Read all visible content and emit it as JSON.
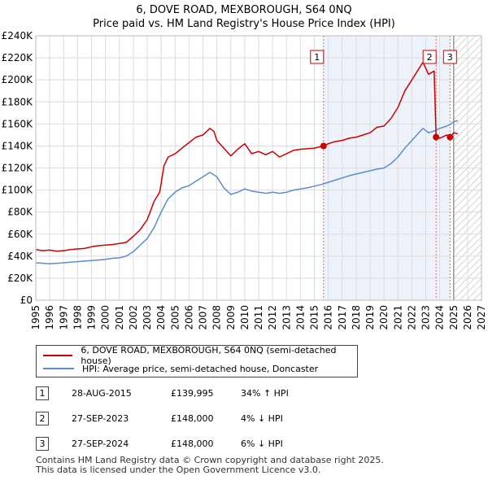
{
  "chart_data": {
    "type": "line",
    "title": "6, DOVE ROAD, MEXBOROUGH, S64 0NQ",
    "subtitle": "Price paid vs. HM Land Registry's House Price Index (HPI)",
    "xlim": [
      1995,
      2027
    ],
    "ylim": [
      0,
      240000
    ],
    "x_ticks": [
      "1995",
      "1996",
      "1997",
      "1998",
      "1999",
      "2000",
      "2001",
      "2002",
      "2003",
      "2004",
      "2005",
      "2006",
      "2007",
      "2008",
      "2009",
      "2010",
      "2011",
      "2012",
      "2013",
      "2014",
      "2015",
      "2016",
      "2017",
      "2018",
      "2019",
      "2020",
      "2021",
      "2022",
      "2023",
      "2024",
      "2025",
      "2026",
      "2027"
    ],
    "y_ticks": [
      {
        "value": 0,
        "label": "£0"
      },
      {
        "value": 20000,
        "label": "£20K"
      },
      {
        "value": 40000,
        "label": "£40K"
      },
      {
        "value": 60000,
        "label": "£60K"
      },
      {
        "value": 80000,
        "label": "£80K"
      },
      {
        "value": 100000,
        "label": "£100K"
      },
      {
        "value": 120000,
        "label": "£120K"
      },
      {
        "value": 140000,
        "label": "£140K"
      },
      {
        "value": 160000,
        "label": "£160K"
      },
      {
        "value": 180000,
        "label": "£180K"
      },
      {
        "value": 200000,
        "label": "£200K"
      },
      {
        "value": 220000,
        "label": "£220K"
      },
      {
        "value": 240000,
        "label": "£240K"
      }
    ],
    "shaded_ranges": [
      {
        "from": 2015.66,
        "to": 2024.74
      }
    ],
    "hatched_from": 2025.0,
    "series": [
      {
        "name": "6, DOVE ROAD, MEXBOROUGH, S64 0NQ (semi-detached house)",
        "color": "#cc0000",
        "points": [
          [
            1995,
            46000
          ],
          [
            1995.5,
            45000
          ],
          [
            1996,
            45500
          ],
          [
            1996.5,
            44500
          ],
          [
            1997,
            45000
          ],
          [
            1997.5,
            46000
          ],
          [
            1998,
            46500
          ],
          [
            1998.5,
            47000
          ],
          [
            1999,
            48500
          ],
          [
            1999.5,
            49500
          ],
          [
            2000,
            50000
          ],
          [
            2000.5,
            50500
          ],
          [
            2001,
            51500
          ],
          [
            2001.5,
            52500
          ],
          [
            2002,
            58000
          ],
          [
            2002.5,
            64000
          ],
          [
            2003,
            73000
          ],
          [
            2003.5,
            90000
          ],
          [
            2003.9,
            98000
          ],
          [
            2004.2,
            122000
          ],
          [
            2004.5,
            130000
          ],
          [
            2005,
            133000
          ],
          [
            2005.5,
            138000
          ],
          [
            2006,
            143000
          ],
          [
            2006.5,
            148000
          ],
          [
            2007,
            150000
          ],
          [
            2007.5,
            156000
          ],
          [
            2007.8,
            153000
          ],
          [
            2008,
            145000
          ],
          [
            2008.5,
            138000
          ],
          [
            2009,
            131000
          ],
          [
            2009.5,
            137000
          ],
          [
            2010,
            142000
          ],
          [
            2010.5,
            133000
          ],
          [
            2011,
            135000
          ],
          [
            2011.5,
            132000
          ],
          [
            2012,
            135000
          ],
          [
            2012.5,
            130000
          ],
          [
            2013,
            133000
          ],
          [
            2013.5,
            136000
          ],
          [
            2014,
            137000
          ],
          [
            2014.5,
            137500
          ],
          [
            2015,
            138000
          ],
          [
            2015.66,
            139995
          ],
          [
            2016,
            142000
          ],
          [
            2016.5,
            144000
          ],
          [
            2017,
            145000
          ],
          [
            2017.5,
            147000
          ],
          [
            2018,
            148000
          ],
          [
            2018.5,
            150000
          ],
          [
            2019,
            152000
          ],
          [
            2019.5,
            157000
          ],
          [
            2020,
            158000
          ],
          [
            2020.5,
            165000
          ],
          [
            2021,
            175000
          ],
          [
            2021.5,
            190000
          ],
          [
            2022,
            200000
          ],
          [
            2022.5,
            210000
          ],
          [
            2022.8,
            216000
          ],
          [
            2023.2,
            205000
          ],
          [
            2023.6,
            208000
          ],
          [
            2023.74,
            148000
          ],
          [
            2024,
            147000
          ],
          [
            2024.5,
            150000
          ],
          [
            2024.74,
            148000
          ],
          [
            2025,
            152000
          ],
          [
            2025.3,
            151000
          ]
        ]
      },
      {
        "name": "HPI: Average price, semi-detached house, Doncaster",
        "color": "#5b8ccc",
        "points": [
          [
            1995,
            34000
          ],
          [
            1995.5,
            33500
          ],
          [
            1996,
            33000
          ],
          [
            1996.5,
            33500
          ],
          [
            1997,
            34000
          ],
          [
            1997.5,
            34500
          ],
          [
            1998,
            35000
          ],
          [
            1998.5,
            35500
          ],
          [
            1999,
            36000
          ],
          [
            1999.5,
            36500
          ],
          [
            2000,
            37000
          ],
          [
            2000.5,
            38000
          ],
          [
            2001,
            38500
          ],
          [
            2001.5,
            40000
          ],
          [
            2002,
            44000
          ],
          [
            2002.5,
            50000
          ],
          [
            2003,
            56000
          ],
          [
            2003.5,
            66000
          ],
          [
            2004,
            80000
          ],
          [
            2004.5,
            92000
          ],
          [
            2005,
            98000
          ],
          [
            2005.5,
            102000
          ],
          [
            2006,
            104000
          ],
          [
            2006.5,
            108000
          ],
          [
            2007,
            112000
          ],
          [
            2007.5,
            116000
          ],
          [
            2008,
            112000
          ],
          [
            2008.5,
            102000
          ],
          [
            2009,
            96000
          ],
          [
            2009.5,
            98000
          ],
          [
            2010,
            101000
          ],
          [
            2010.5,
            99000
          ],
          [
            2011,
            98000
          ],
          [
            2011.5,
            97000
          ],
          [
            2012,
            98000
          ],
          [
            2012.5,
            97000
          ],
          [
            2013,
            98000
          ],
          [
            2013.5,
            100000
          ],
          [
            2014,
            101000
          ],
          [
            2014.5,
            102000
          ],
          [
            2015,
            103500
          ],
          [
            2015.5,
            105000
          ],
          [
            2016,
            107000
          ],
          [
            2016.5,
            109000
          ],
          [
            2017,
            111000
          ],
          [
            2017.5,
            113000
          ],
          [
            2018,
            114500
          ],
          [
            2018.5,
            116000
          ],
          [
            2019,
            117500
          ],
          [
            2019.5,
            119000
          ],
          [
            2020,
            120000
          ],
          [
            2020.5,
            124000
          ],
          [
            2021,
            130000
          ],
          [
            2021.5,
            138000
          ],
          [
            2022,
            145000
          ],
          [
            2022.5,
            152000
          ],
          [
            2022.8,
            156000
          ],
          [
            2023.2,
            152000
          ],
          [
            2023.7,
            154000
          ],
          [
            2024,
            156000
          ],
          [
            2024.5,
            158000
          ],
          [
            2024.8,
            160000
          ],
          [
            2025,
            162000
          ],
          [
            2025.3,
            163000
          ]
        ]
      }
    ],
    "markers": [
      {
        "id": "1",
        "x": 2015.66,
        "y": 139995
      },
      {
        "id": "2",
        "x": 2023.74,
        "y": 148000
      },
      {
        "id": "3",
        "x": 2024.74,
        "y": 148000
      }
    ],
    "legend_position": "below"
  },
  "transactions": [
    {
      "num": "1",
      "date": "28-AUG-2015",
      "price": "£139,995",
      "hpi": "34% ↑ HPI"
    },
    {
      "num": "2",
      "date": "27-SEP-2023",
      "price": "£148,000",
      "hpi": "4% ↓ HPI"
    },
    {
      "num": "3",
      "date": "27-SEP-2024",
      "price": "£148,000",
      "hpi": "6% ↓ HPI"
    }
  ],
  "footer": {
    "line1": "Contains HM Land Registry data © Crown copyright and database right 2025.",
    "line2": "This data is licensed under the Open Government Licence v3.0."
  }
}
